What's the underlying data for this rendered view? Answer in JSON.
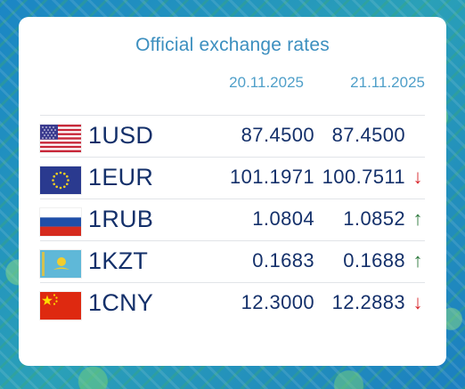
{
  "widget": {
    "title": "Official exchange rates",
    "dates": [
      "20.11.2025",
      "21.11.2025"
    ]
  },
  "rows": [
    {
      "flag": "usa-flag-icon",
      "code": "1USD",
      "rate_prev": "87.4500",
      "rate_curr": "87.4500",
      "trend": "",
      "trend_symbol": ""
    },
    {
      "flag": "eu-flag-icon",
      "code": "1EUR",
      "rate_prev": "101.1971",
      "rate_curr": "100.7511",
      "trend": "down",
      "trend_symbol": "↓"
    },
    {
      "flag": "russia-flag-icon",
      "code": "1RUB",
      "rate_prev": "1.0804",
      "rate_curr": "1.0852",
      "trend": "up",
      "trend_symbol": "↑"
    },
    {
      "flag": "kazakhstan-flag-icon",
      "code": "1KZT",
      "rate_prev": "0.1683",
      "rate_curr": "0.1688",
      "trend": "up",
      "trend_symbol": "↑"
    },
    {
      "flag": "china-flag-icon",
      "code": "1CNY",
      "rate_prev": "12.3000",
      "rate_curr": "12.2883",
      "trend": "down",
      "trend_symbol": "↓"
    }
  ],
  "colors": {
    "title": "#3c8fbf",
    "text": "#14306a",
    "down": "#d8262c",
    "up": "#2f7a3e"
  }
}
